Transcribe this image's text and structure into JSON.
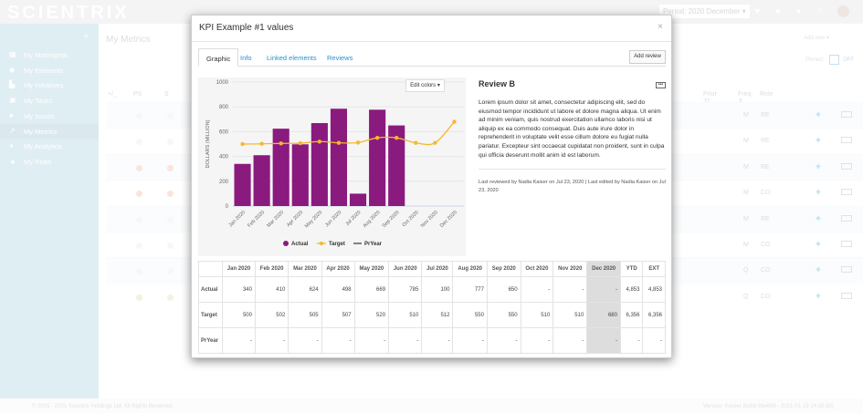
{
  "app": {
    "logo": "SCIENTRIX",
    "period": "Period: 2020 December ▾",
    "footer_left": "© 2005 - 2021 Scientrix Holdings Ltd. All Rights Reserved.",
    "footer_right": "Version: master (build 93e698 - 2021-01-13 14:35:30)"
  },
  "sidebar": {
    "collapse": "«",
    "items": [
      {
        "label": "My Matrixgrids",
        "icon": "grid-icon"
      },
      {
        "label": "My Elements",
        "icon": "elements-icon"
      },
      {
        "label": "My Initiatives",
        "icon": "initiatives-icon"
      },
      {
        "label": "My Tasks",
        "icon": "tasks-icon"
      },
      {
        "label": "My Issues",
        "icon": "issue-icon"
      },
      {
        "label": "My Metrics",
        "icon": "chart-line-icon",
        "active": true
      },
      {
        "label": "My Analytics",
        "icon": "pie-icon"
      },
      {
        "label": "My Risks",
        "icon": "warning-icon"
      }
    ]
  },
  "page": {
    "title": "My Metrics",
    "add_new": "Add new ▾",
    "pinned_label": "Pinned:",
    "pinned_state": "OFF",
    "columns": [
      "+/_",
      "PS",
      "S",
      "Prior Yr %",
      "Freq. ⇕",
      "Role"
    ],
    "rows": [
      {
        "freq": "M",
        "role": "RE",
        "ps": "#e5e5e5"
      },
      {
        "freq": "M",
        "role": "RE",
        "ps": "#e5e5e5"
      },
      {
        "freq": "M",
        "role": "RE",
        "ps": "#f5a08a"
      },
      {
        "freq": "M",
        "role": "CO",
        "ps": "#f5a08a"
      },
      {
        "freq": "M",
        "role": "RE",
        "ps": "#e5e5e5"
      },
      {
        "freq": "M",
        "role": "CO",
        "ps": "#e5e5e5"
      },
      {
        "freq": "Q",
        "role": "CO",
        "ps": "#e5e5e5"
      },
      {
        "freq": "Q",
        "role": "CO",
        "ps": "#c9d98a"
      }
    ]
  },
  "modal": {
    "title": "KPI Example #1 values",
    "close": "×",
    "tabs": [
      {
        "label": "Graphic",
        "active": true
      },
      {
        "label": "Info"
      },
      {
        "label": "Linked elements"
      },
      {
        "label": "Reviews"
      }
    ],
    "add_review": "Add review",
    "edit_colors": "Edit colors ▾",
    "review": {
      "title": "Review B",
      "more": "•••",
      "body": "Lorem ipsum dolor sit amet, consectetur adipiscing elit, sed do eiusmod tempor incididunt ut labore et dolore magna aliqua. Ut enim ad minim veniam, quis nostrud exercitation ullamco laboris nisi ut aliquip ex ea commodo consequat. Duis aute irure dolor in reprehenderit in voluptate velit esse cillum dolore eu fugiat nulla pariatur. Excepteur sint occaecat cupidatat non proident, sunt in culpa qui officia deserunt mollit anim id est laborum.",
      "meta": "Last reviewed by Nadia Kaiser on Jul 23, 2020 | Last edited by Nadia Kaiser on Jul 23, 2020"
    },
    "table": {
      "headers": [
        "",
        "Jan 2020",
        "Feb 2020",
        "Mar 2020",
        "Apr 2020",
        "May 2020",
        "Jun 2020",
        "Jul 2020",
        "Aug 2020",
        "Sep 2020",
        "Oct 2020",
        "Nov 2020",
        "Dec 2020",
        "YTD",
        "EXT"
      ],
      "rows": [
        [
          "Actual",
          "340",
          "410",
          "624",
          "498",
          "669",
          "785",
          "100",
          "777",
          "650",
          "-",
          "-",
          "-",
          "4,853",
          "4,853"
        ],
        [
          "Target",
          "500",
          "502",
          "505",
          "507",
          "520",
          "510",
          "512",
          "550",
          "550",
          "510",
          "510",
          "680",
          "6,356",
          "6,356"
        ],
        [
          "PrYear",
          "-",
          "-",
          "-",
          "-",
          "-",
          "-",
          "-",
          "-",
          "-",
          "-",
          "-",
          "-",
          "-",
          "-"
        ]
      ],
      "highlight_column": "Dec 2020"
    }
  },
  "chart_data": {
    "type": "bar",
    "ylabel": "DOLLARS (MILLION)",
    "ylim": [
      0,
      1000
    ],
    "yticks": [
      0,
      200,
      400,
      600,
      800,
      1000
    ],
    "grid": true,
    "legend": "bottom",
    "categories": [
      "Jan 2020",
      "Feb 2020",
      "Mar 2020",
      "Apr 2020",
      "May 2020",
      "Jun 2020",
      "Jul 2020",
      "Aug 2020",
      "Sep 2020",
      "Oct 2020",
      "Nov 2020",
      "Dec 2020"
    ],
    "series": [
      {
        "name": "Actual",
        "type": "bar",
        "color": "#8b1a7f",
        "values": [
          340,
          410,
          624,
          498,
          669,
          785,
          100,
          777,
          650,
          null,
          null,
          null
        ]
      },
      {
        "name": "Target",
        "type": "line",
        "color": "#f5b82e",
        "values": [
          500,
          502,
          505,
          507,
          520,
          510,
          512,
          550,
          550,
          510,
          510,
          680
        ]
      },
      {
        "name": "PrYear",
        "type": "line",
        "color": "#444444",
        "values": [
          null,
          null,
          null,
          null,
          null,
          null,
          null,
          null,
          null,
          null,
          null,
          null
        ]
      }
    ]
  }
}
